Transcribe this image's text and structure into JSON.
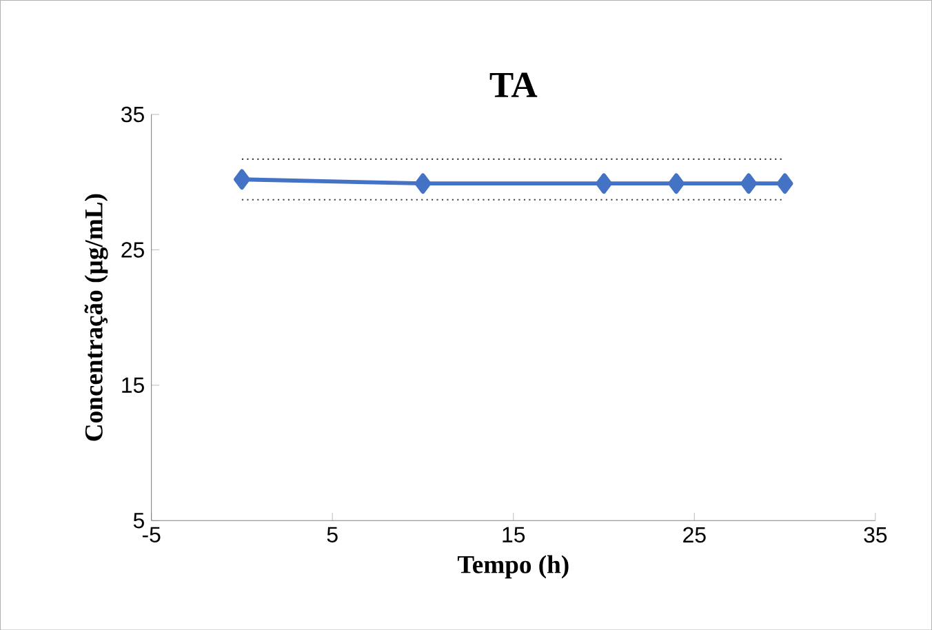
{
  "chart_data": {
    "type": "line",
    "title": "TA",
    "xlabel": "Tempo (h)",
    "ylabel": "Concentração (µg/mL)",
    "x": [
      0,
      10,
      20,
      24,
      28,
      30
    ],
    "series": [
      {
        "color": "#4472c4",
        "values": [
          30.2,
          29.9,
          29.9,
          29.9,
          29.9,
          29.9
        ]
      }
    ],
    "xlim": [
      -5,
      35
    ],
    "xticks": [
      -5,
      5,
      15,
      25,
      35
    ],
    "ylim": [
      5,
      35
    ],
    "yticks": [
      5,
      15,
      25,
      35
    ],
    "ref_lines": [
      {
        "axis": "y",
        "value": 31.7,
        "color": "#404040",
        "line_style": "dotted"
      },
      {
        "axis": "y",
        "value": 28.7,
        "color": "#404040",
        "line_style": "dotted"
      }
    ],
    "marker": "diamond",
    "line_style": "solid"
  }
}
